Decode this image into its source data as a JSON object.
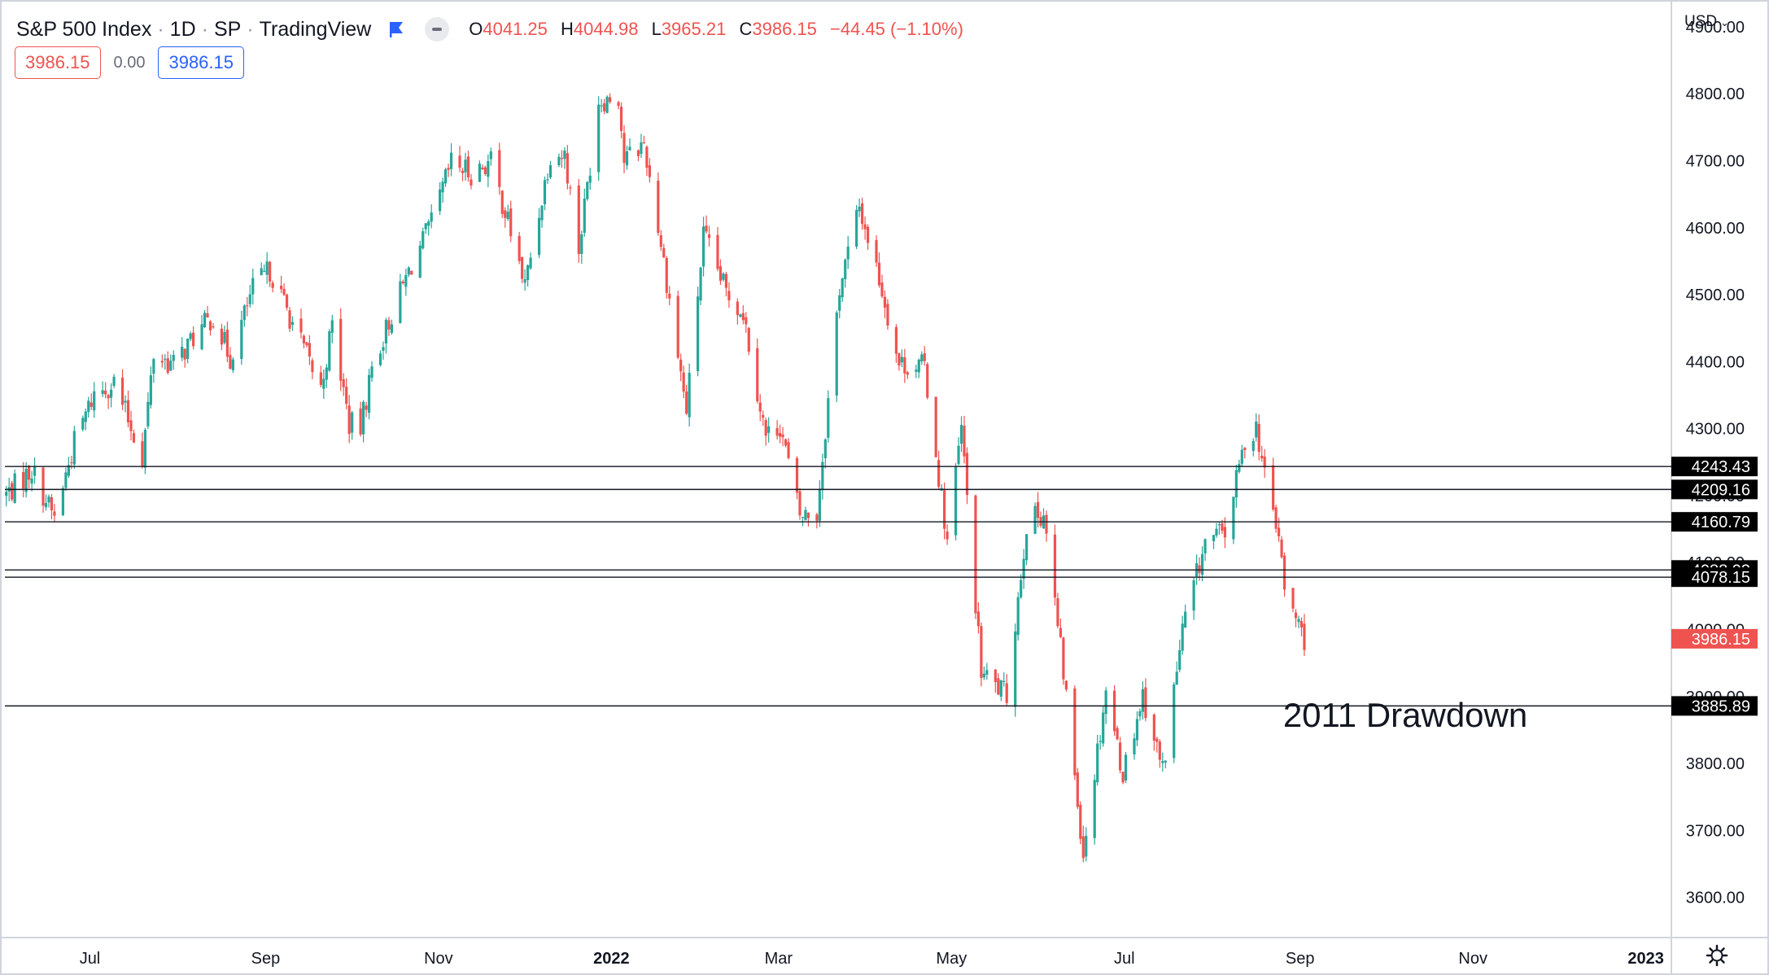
{
  "header": {
    "symbol": "S&P 500 Index",
    "interval": "1D",
    "exchange": "SP",
    "source": "TradingView",
    "open_label": "O",
    "open": "4041.25",
    "high_label": "H",
    "high": "4044.98",
    "low_label": "L",
    "low": "3965.21",
    "close_label": "C",
    "close": "3986.15",
    "change": "−44.45 (−1.10%)",
    "bid": "3986.15",
    "spread": "0.00",
    "ask": "3986.15"
  },
  "currency": "USD",
  "chart_data": {
    "type": "candlestick",
    "price_range": [
      3540,
      4940
    ],
    "price_ticks": [
      "3600.00",
      "3700.00",
      "3800.00",
      "3900.00",
      "4000.00",
      "4100.00",
      "4200.00",
      "4300.00",
      "4400.00",
      "4500.00",
      "4600.00",
      "4700.00",
      "4800.00",
      "4900.00"
    ],
    "x_labels": [
      {
        "label": "Jul",
        "date": "2021-07-01"
      },
      {
        "label": "Sep",
        "date": "2021-09-01"
      },
      {
        "label": "Nov",
        "date": "2021-11-01"
      },
      {
        "label": "2022",
        "date": "2022-01-01",
        "bold": true
      },
      {
        "label": "Mar",
        "date": "2022-03-01"
      },
      {
        "label": "May",
        "date": "2022-05-01"
      },
      {
        "label": "Jul",
        "date": "2022-07-01"
      },
      {
        "label": "Sep",
        "date": "2022-09-01"
      },
      {
        "label": "Nov",
        "date": "2022-11-01"
      },
      {
        "label": "2023",
        "date": "2023-01-01",
        "bold": true
      }
    ],
    "x_range": [
      "2021-06-01",
      "2023-01-10"
    ],
    "horizontal_levels": [
      {
        "value": 4243.43,
        "label": "4243.43"
      },
      {
        "value": 4209.16,
        "label": "4209.16"
      },
      {
        "value": 4160.79,
        "label": "4160.79"
      },
      {
        "value": 4088.93,
        "label": "4088.93"
      },
      {
        "value": 4078.15,
        "label": "4078.15"
      },
      {
        "value": 3885.89,
        "label": "3885.89"
      }
    ],
    "last_price": {
      "value": 3986.15,
      "label": "3986.15"
    },
    "annotation": {
      "text": "2011 Drawdown",
      "date": "2022-08-26",
      "price": 3855
    },
    "up_color": "#26a69a",
    "down_color": "#ef5350",
    "closes": [
      [
        "2021-06-01",
        4202
      ],
      [
        "2021-06-10",
        4239
      ],
      [
        "2021-06-18",
        4166
      ],
      [
        "2021-06-25",
        4280
      ],
      [
        "2021-07-02",
        4352
      ],
      [
        "2021-07-09",
        4369
      ],
      [
        "2021-07-19",
        4258
      ],
      [
        "2021-07-23",
        4411
      ],
      [
        "2021-07-30",
        4395
      ],
      [
        "2021-08-06",
        4436
      ],
      [
        "2021-08-13",
        4468
      ],
      [
        "2021-08-19",
        4405
      ],
      [
        "2021-08-27",
        4509
      ],
      [
        "2021-09-02",
        4537
      ],
      [
        "2021-09-10",
        4458
      ],
      [
        "2021-09-20",
        4358
      ],
      [
        "2021-09-24",
        4455
      ],
      [
        "2021-09-30",
        4307
      ],
      [
        "2021-10-04",
        4300
      ],
      [
        "2021-10-08",
        4391
      ],
      [
        "2021-10-15",
        4471
      ],
      [
        "2021-10-22",
        4545
      ],
      [
        "2021-10-29",
        4605
      ],
      [
        "2021-11-05",
        4697
      ],
      [
        "2021-11-12",
        4682
      ],
      [
        "2021-11-19",
        4698
      ],
      [
        "2021-11-26",
        4594
      ],
      [
        "2021-12-01",
        4513
      ],
      [
        "2021-12-10",
        4712
      ],
      [
        "2021-12-15",
        4709
      ],
      [
        "2021-12-20",
        4568
      ],
      [
        "2021-12-27",
        4791
      ],
      [
        "2022-01-03",
        4797
      ],
      [
        "2022-01-05",
        4700
      ],
      [
        "2022-01-12",
        4726
      ],
      [
        "2022-01-18",
        4577
      ],
      [
        "2022-01-24",
        4410
      ],
      [
        "2022-01-27",
        4326
      ],
      [
        "2022-02-02",
        4589
      ],
      [
        "2022-02-10",
        4504
      ],
      [
        "2022-02-16",
        4475
      ],
      [
        "2022-02-24",
        4288
      ],
      [
        "2022-03-01",
        4306
      ],
      [
        "2022-03-08",
        4170
      ],
      [
        "2022-03-14",
        4173
      ],
      [
        "2022-03-22",
        4511
      ],
      [
        "2022-03-29",
        4631
      ],
      [
        "2022-04-05",
        4525
      ],
      [
        "2022-04-12",
        4397
      ],
      [
        "2022-04-21",
        4393
      ],
      [
        "2022-04-29",
        4132
      ],
      [
        "2022-05-04",
        4300
      ],
      [
        "2022-05-11",
        3935
      ],
      [
        "2022-05-20",
        3901
      ],
      [
        "2022-05-27",
        4158
      ],
      [
        "2022-06-02",
        4176
      ],
      [
        "2022-06-10",
        3901
      ],
      [
        "2022-06-16",
        3667
      ],
      [
        "2022-06-24",
        3912
      ],
      [
        "2022-06-30",
        3785
      ],
      [
        "2022-07-07",
        3903
      ],
      [
        "2022-07-14",
        3790
      ],
      [
        "2022-07-21",
        3999
      ],
      [
        "2022-07-29",
        4130
      ],
      [
        "2022-08-05",
        4145
      ],
      [
        "2022-08-12",
        4280
      ],
      [
        "2022-08-16",
        4305
      ],
      [
        "2022-08-19",
        4228
      ],
      [
        "2022-08-24",
        4140
      ],
      [
        "2022-08-26",
        4057
      ],
      [
        "2022-09-02",
        3986
      ]
    ]
  }
}
